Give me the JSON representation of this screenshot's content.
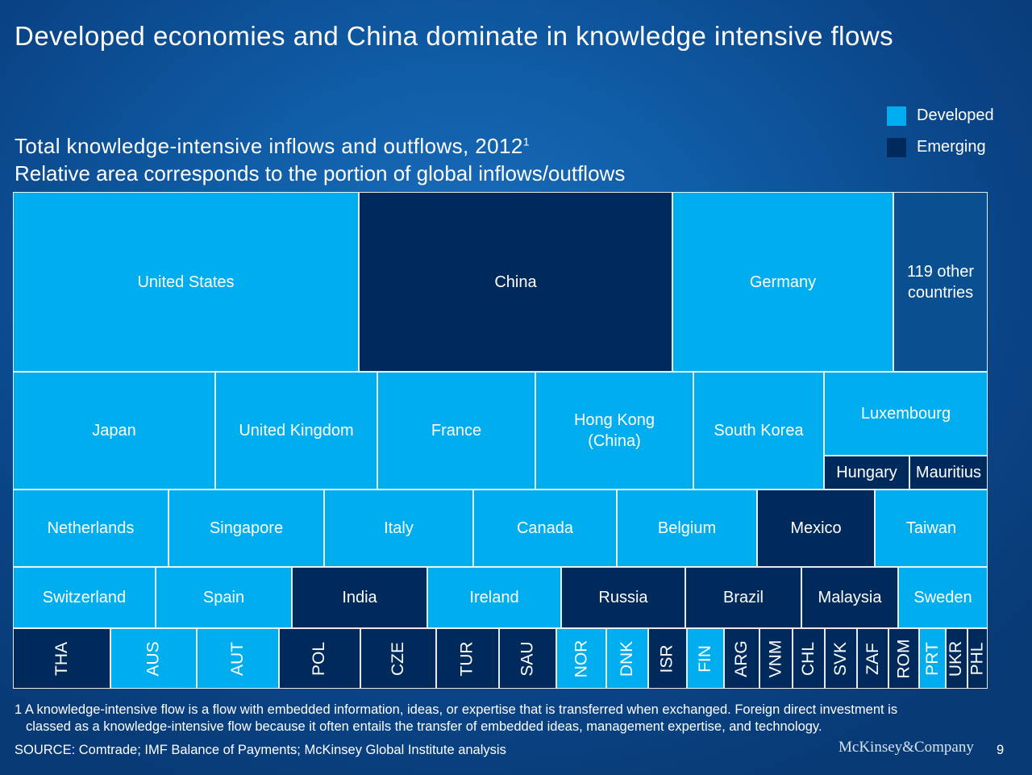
{
  "title": "Developed economies and China dominate in knowledge intensive flows",
  "subtitle": {
    "line1": "Total knowledge-intensive inflows and outflows, 2012",
    "superscript": "1",
    "line2": "Relative area corresponds to the portion of global inflows/outflows"
  },
  "legend": [
    {
      "label": "Developed",
      "color": "#00aeef"
    },
    {
      "label": "Emerging",
      "color": "#002a5c"
    }
  ],
  "colors": {
    "developed": "#00aeef",
    "emerging": "#002a5c",
    "other": "#0a4f8f"
  },
  "chart_data": {
    "type": "treemap",
    "title": "Total knowledge-intensive inflows and outflows, 2012",
    "rows": [
      {
        "items": [
          {
            "label": "United States",
            "group": "developed",
            "share": 35.5
          },
          {
            "label": "China",
            "group": "emerging",
            "share": 32.2
          },
          {
            "label": "Germany",
            "group": "developed",
            "share": 22.7
          },
          {
            "label": "119 other\ncountries",
            "group": "other",
            "share": 9.6
          }
        ]
      },
      {
        "items": [
          {
            "label": "Japan",
            "group": "developed",
            "share": 20.8
          },
          {
            "label": "United Kingdom",
            "group": "developed",
            "share": 16.6
          },
          {
            "label": "France",
            "group": "developed",
            "share": 16.2
          },
          {
            "label": "Hong Kong\n(China)",
            "group": "developed",
            "share": 16.2
          },
          {
            "label": "South Korea",
            "group": "developed",
            "share": 13.4
          },
          {
            "label": "Luxembourg",
            "group": "developed",
            "share": 16.8,
            "children": [
              {
                "label": "Hungary",
                "group": "emerging",
                "share": 8.8
              },
              {
                "label": "Mauritius",
                "group": "emerging",
                "share": 8.0
              }
            ]
          }
        ]
      },
      {
        "items": [
          {
            "label": "Netherlands",
            "group": "developed",
            "share": 16.0
          },
          {
            "label": "Singapore",
            "group": "developed",
            "share": 16.0
          },
          {
            "label": "Italy",
            "group": "developed",
            "share": 15.3
          },
          {
            "label": "Canada",
            "group": "developed",
            "share": 14.7
          },
          {
            "label": "Belgium",
            "group": "developed",
            "share": 14.4
          },
          {
            "label": "Mexico",
            "group": "emerging",
            "share": 12.1
          },
          {
            "label": "Taiwan",
            "group": "developed",
            "share": 11.5
          }
        ]
      },
      {
        "items": [
          {
            "label": "Switzerland",
            "group": "developed",
            "share": 14.6
          },
          {
            "label": "Spain",
            "group": "developed",
            "share": 14.0
          },
          {
            "label": "India",
            "group": "emerging",
            "share": 13.9
          },
          {
            "label": "Ireland",
            "group": "developed",
            "share": 13.7
          },
          {
            "label": "Russia",
            "group": "emerging",
            "share": 12.7
          },
          {
            "label": "Brazil",
            "group": "emerging",
            "share": 11.9
          },
          {
            "label": "Malaysia",
            "group": "emerging",
            "share": 9.9
          },
          {
            "label": "Sweden",
            "group": "developed",
            "share": 9.3
          }
        ]
      },
      {
        "rotated": true,
        "items": [
          {
            "label": "THA",
            "group": "emerging",
            "share": 10.0
          },
          {
            "label": "AUS",
            "group": "developed",
            "share": 8.8
          },
          {
            "label": "AUT",
            "group": "developed",
            "share": 8.4
          },
          {
            "label": "POL",
            "group": "emerging",
            "share": 8.3
          },
          {
            "label": "CZE",
            "group": "emerging",
            "share": 7.8
          },
          {
            "label": "TUR",
            "group": "emerging",
            "share": 6.4
          },
          {
            "label": "SAU",
            "group": "emerging",
            "share": 5.9
          },
          {
            "label": "NOR",
            "group": "developed",
            "share": 5.1
          },
          {
            "label": "DNK",
            "group": "developed",
            "share": 4.3
          },
          {
            "label": "ISR",
            "group": "emerging",
            "share": 4.0
          },
          {
            "label": "FIN",
            "group": "developed",
            "share": 3.8
          },
          {
            "label": "ARG",
            "group": "emerging",
            "share": 3.6
          },
          {
            "label": "VNM",
            "group": "emerging",
            "share": 3.4
          },
          {
            "label": "CHL",
            "group": "emerging",
            "share": 3.3
          },
          {
            "label": "SVK",
            "group": "emerging",
            "share": 3.3
          },
          {
            "label": "ZAF",
            "group": "emerging",
            "share": 3.2
          },
          {
            "label": "ROM",
            "group": "emerging",
            "share": 3.1
          },
          {
            "label": "PRT",
            "group": "developed",
            "share": 2.7
          },
          {
            "label": "UKR",
            "group": "emerging",
            "share": 2.2
          },
          {
            "label": "PHL",
            "group": "emerging",
            "share": 2.2
          }
        ]
      }
    ]
  },
  "footnote": {
    "line1": "1 A knowledge-intensive flow is a flow with embedded information, ideas, or expertise that is transferred when exchanged. Foreign direct investment is",
    "line2": "classed as a knowledge-intensive flow because it often entails the transfer of embedded ideas, management expertise, and technology."
  },
  "source": "SOURCE: Comtrade; IMF Balance of Payments; McKinsey Global Institute analysis",
  "logo": "McKinsey&Company",
  "page_number": "9"
}
